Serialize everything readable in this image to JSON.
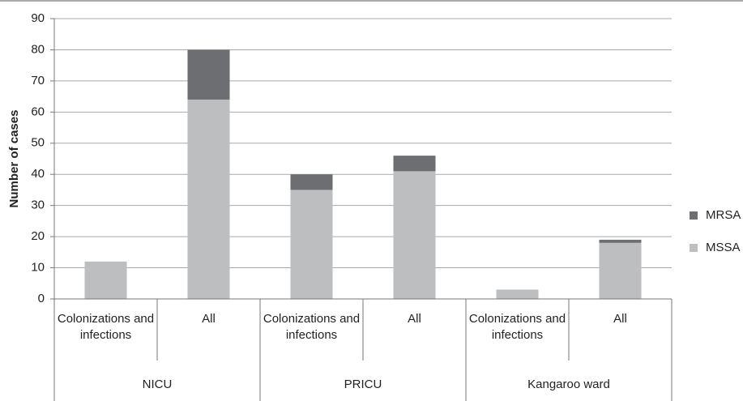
{
  "chart_data": {
    "type": "stacked_bar",
    "y_label": "Number of cases",
    "categories": [
      "Colonizations and infections",
      "All",
      "Colonizations and infections",
      "All",
      "Colonizations and infections",
      "All"
    ],
    "groups": [
      "NICU",
      "PRICU",
      "Kangaroo ward"
    ],
    "series": [
      {
        "name": "MSSA",
        "color": "#bcbec0",
        "values": [
          12,
          64,
          35,
          41,
          3,
          18
        ]
      },
      {
        "name": "MRSA",
        "color": "#6d6e71",
        "values": [
          0,
          16,
          5,
          5,
          0,
          1
        ]
      }
    ],
    "ylim": [
      0,
      90
    ],
    "yticks": [
      0,
      10,
      20,
      30,
      40,
      50,
      60,
      70,
      80,
      90
    ],
    "grid": true
  }
}
